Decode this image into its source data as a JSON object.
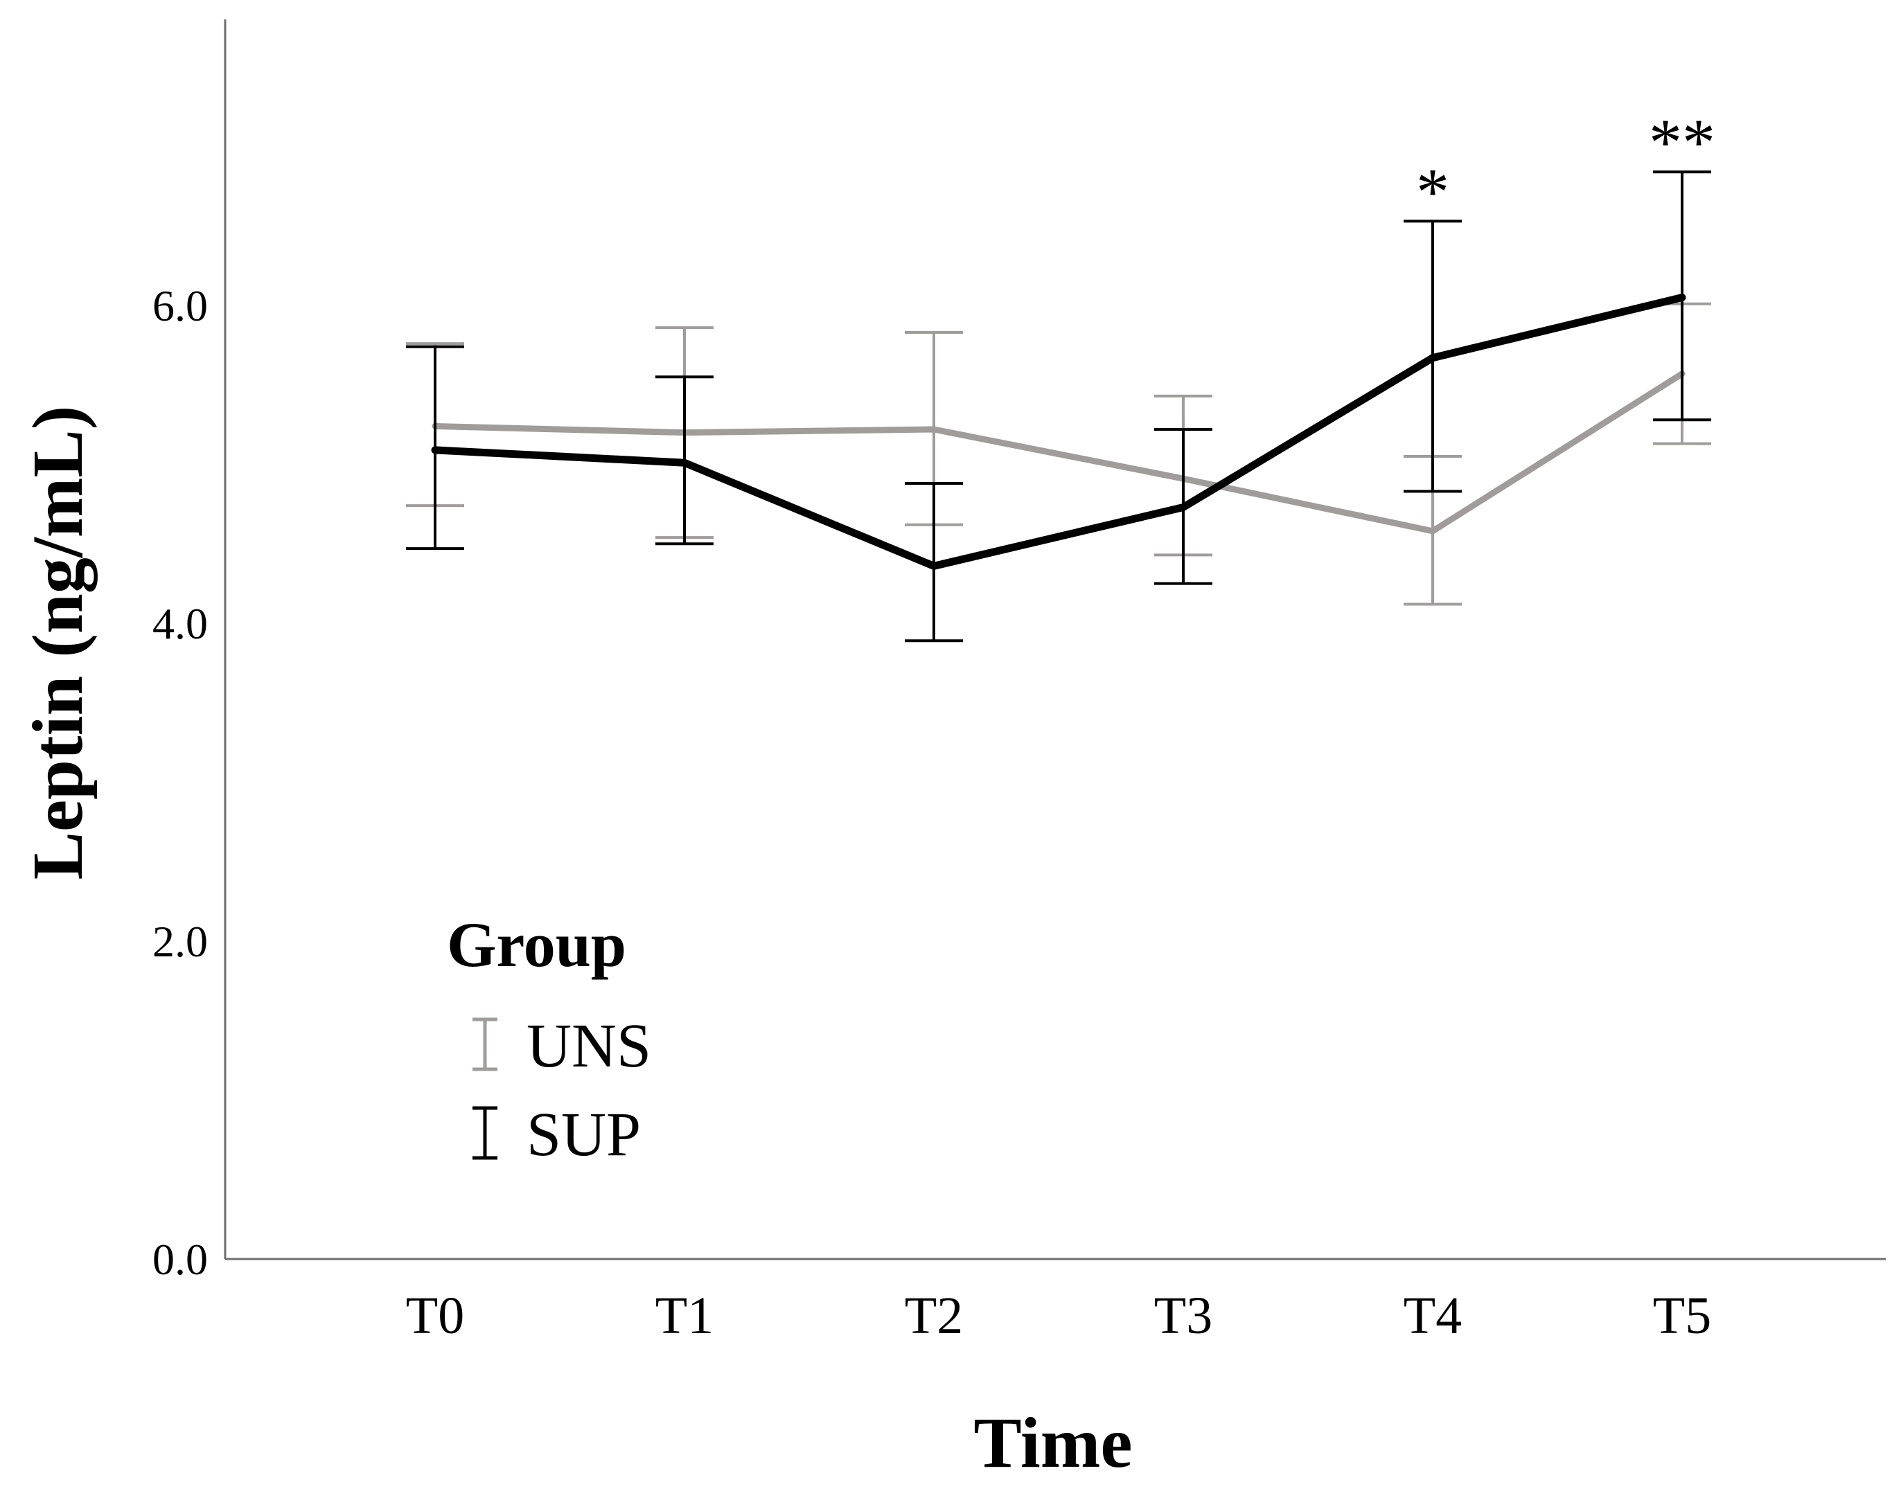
{
  "chart_data": {
    "type": "line",
    "xlabel": "Time",
    "ylabel": "Leptin (ng/mL)",
    "categories": [
      "T0",
      "T1",
      "T2",
      "T3",
      "T4",
      "T5"
    ],
    "ylim": [
      0.0,
      7.9
    ],
    "yticks": [
      0.0,
      2.0,
      4.0,
      6.0
    ],
    "ytick_labels": [
      "0.0",
      "2.0",
      "4.0",
      "6.0"
    ],
    "error_bars": true,
    "series": [
      {
        "name": "UNS",
        "color": "#a09c9c",
        "values": [
          5.24,
          5.2,
          5.22,
          4.91,
          4.58,
          5.57
        ],
        "lower": [
          4.74,
          4.54,
          4.62,
          4.43,
          4.12,
          5.13
        ],
        "upper": [
          5.76,
          5.86,
          5.83,
          5.43,
          5.05,
          6.01
        ]
      },
      {
        "name": "SUP",
        "color": "#000000",
        "values": [
          5.09,
          5.01,
          4.36,
          4.73,
          5.67,
          6.05
        ],
        "lower": [
          4.47,
          4.5,
          3.89,
          4.25,
          4.83,
          5.28
        ],
        "upper": [
          5.74,
          5.55,
          4.88,
          5.22,
          6.53,
          6.84
        ]
      }
    ],
    "legend": {
      "title": "Group",
      "position": "bottom-left",
      "entries": [
        "UNS",
        "SUP"
      ]
    },
    "annotations": [
      {
        "category": "T4",
        "text": "*"
      },
      {
        "category": "T5",
        "text": "**"
      }
    ]
  }
}
